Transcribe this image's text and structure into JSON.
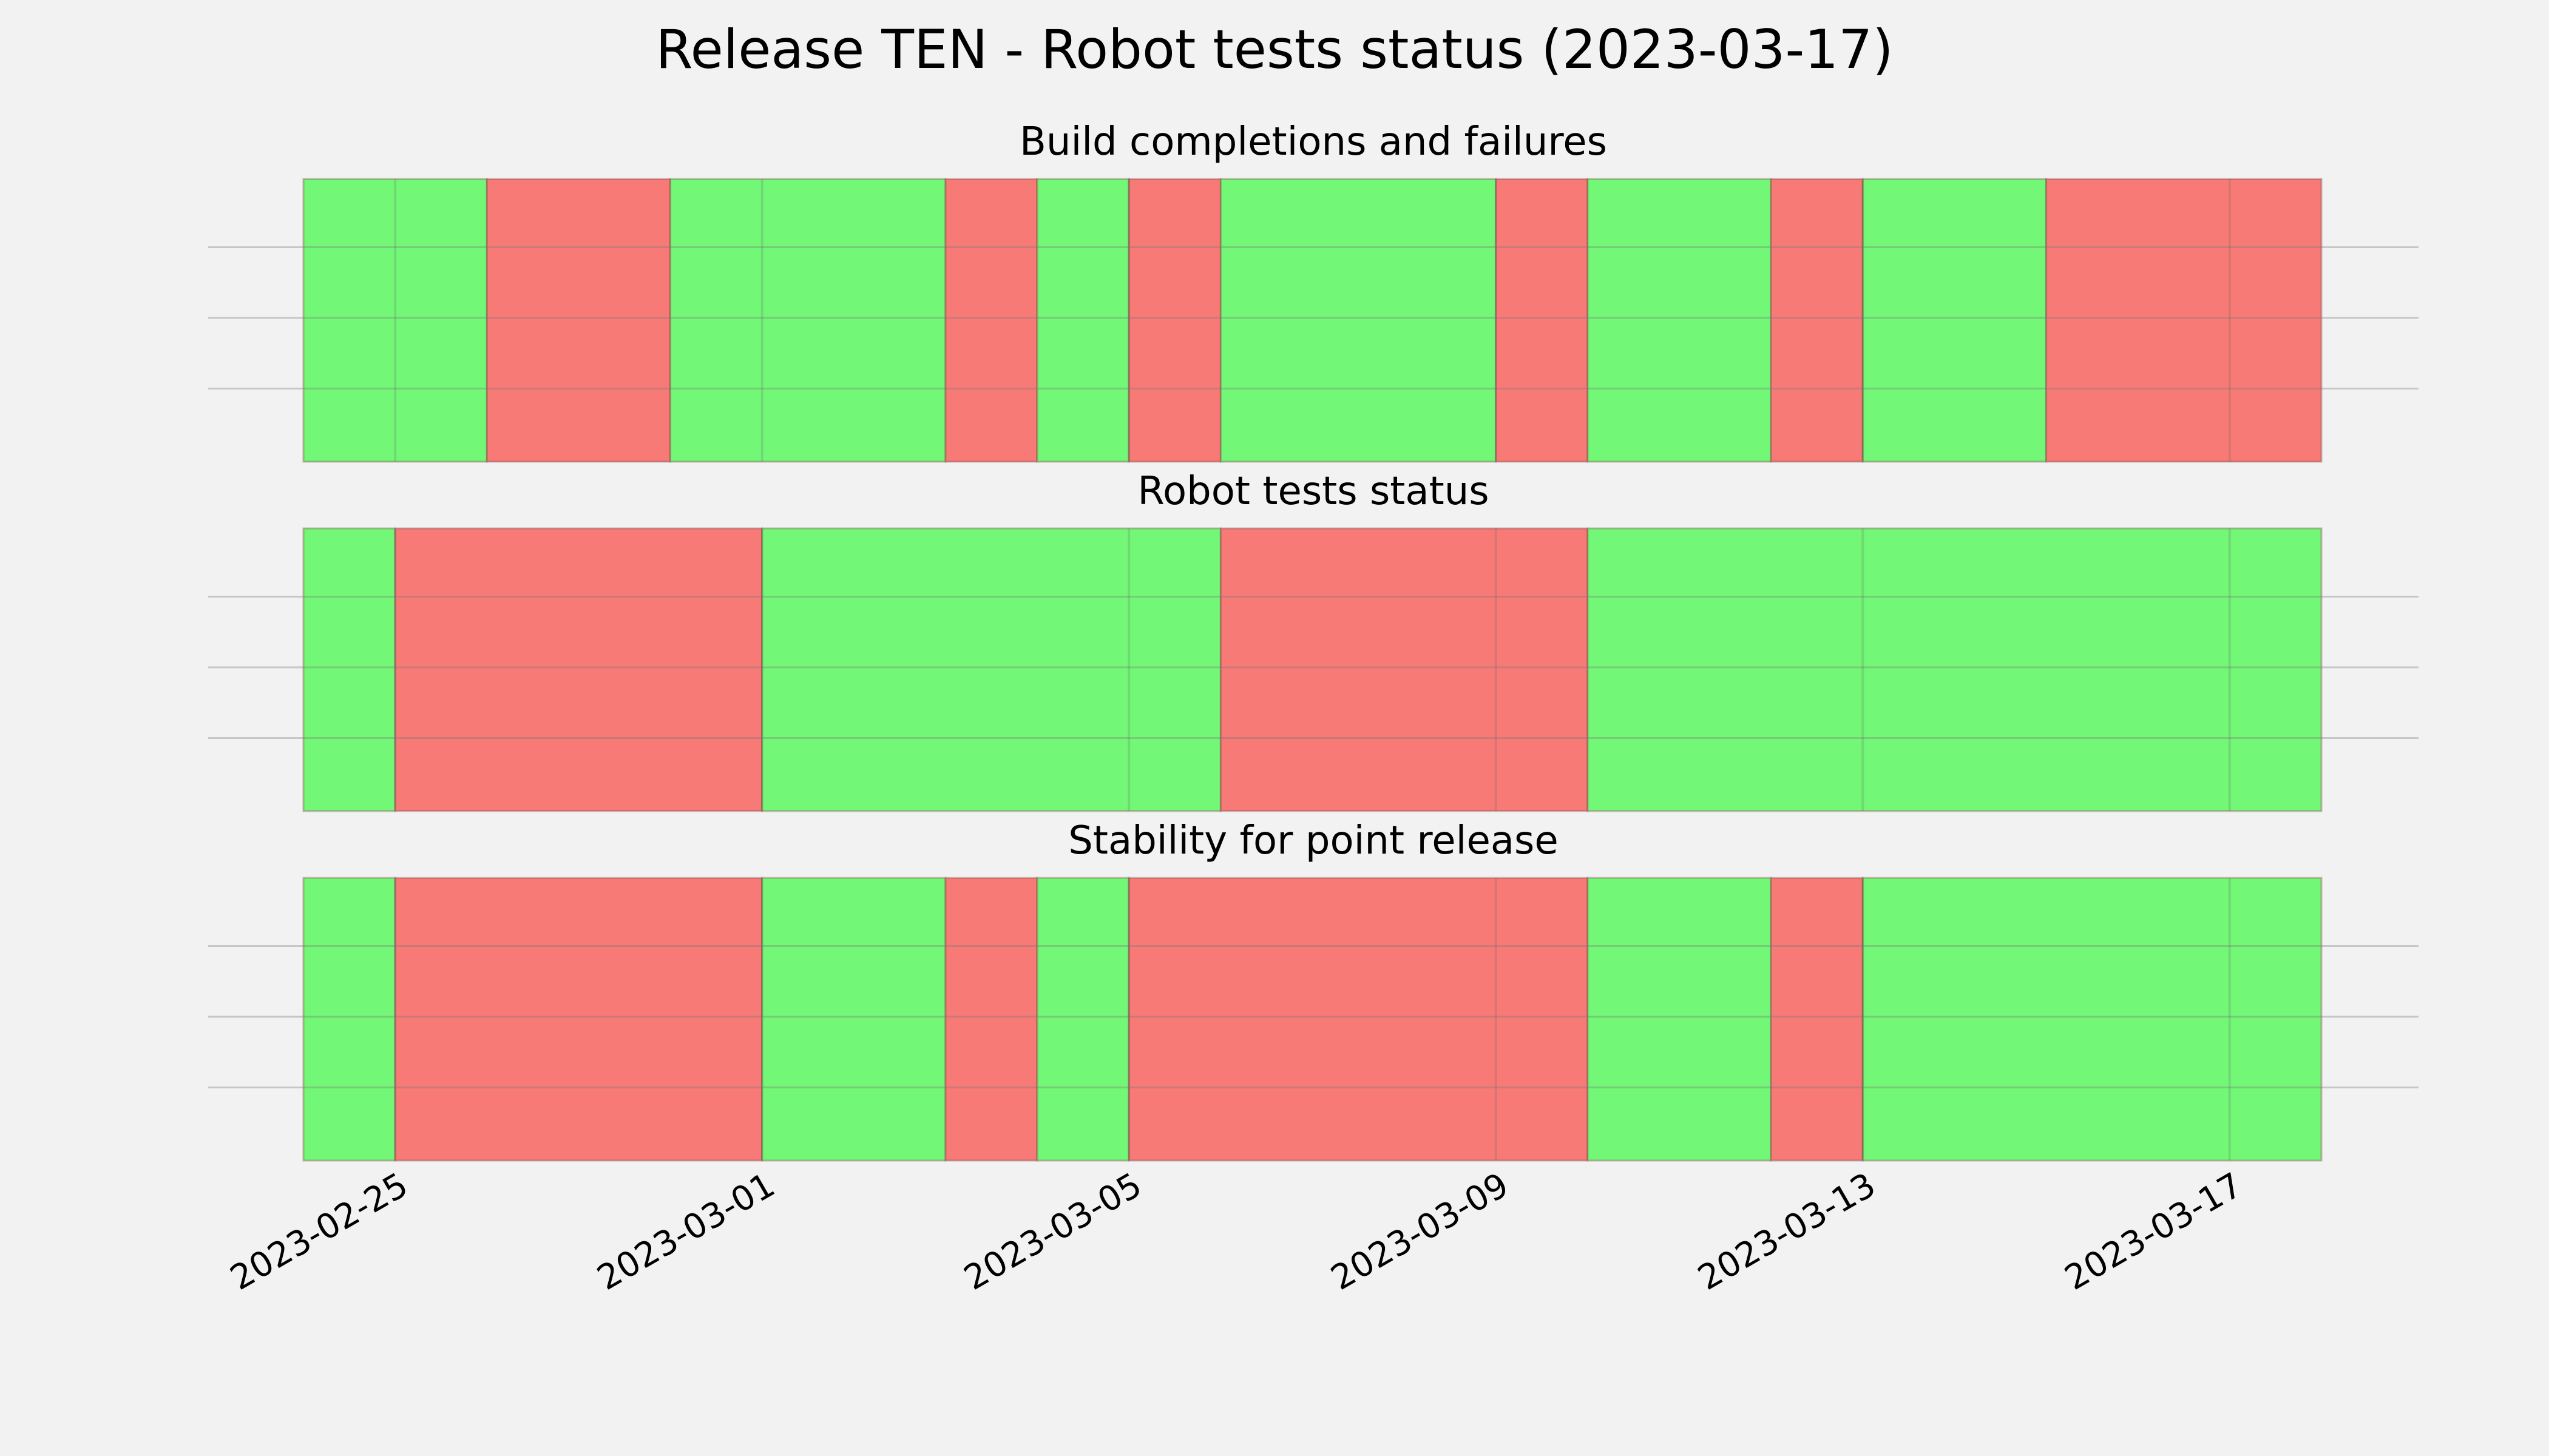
{
  "chart_data": {
    "type": "timeline",
    "title": "Release TEN - Robot tests status (2023-03-17)",
    "x_range": [
      "2023-02-24",
      "2023-03-18"
    ],
    "x_ticks": [
      "2023-02-25",
      "2023-03-01",
      "2023-03-05",
      "2023-03-09",
      "2023-03-13",
      "2023-03-17"
    ],
    "colors": {
      "pass": "#73f777",
      "fail": "#f77a77",
      "background": "#f2f2f2",
      "grid": "#c8c8c8"
    },
    "grid": true,
    "panels": [
      {
        "title": "Build completions and failures",
        "segments": [
          {
            "start": "2023-02-24",
            "end": "2023-02-26",
            "status": "pass"
          },
          {
            "start": "2023-02-26",
            "end": "2023-02-28",
            "status": "fail"
          },
          {
            "start": "2023-02-28",
            "end": "2023-03-03",
            "status": "pass"
          },
          {
            "start": "2023-03-03",
            "end": "2023-03-04",
            "status": "fail"
          },
          {
            "start": "2023-03-04",
            "end": "2023-03-05",
            "status": "pass"
          },
          {
            "start": "2023-03-05",
            "end": "2023-03-06",
            "status": "fail"
          },
          {
            "start": "2023-03-06",
            "end": "2023-03-09",
            "status": "pass"
          },
          {
            "start": "2023-03-09",
            "end": "2023-03-10",
            "status": "fail"
          },
          {
            "start": "2023-03-10",
            "end": "2023-03-12",
            "status": "pass"
          },
          {
            "start": "2023-03-12",
            "end": "2023-03-13",
            "status": "fail"
          },
          {
            "start": "2023-03-13",
            "end": "2023-03-15",
            "status": "pass"
          },
          {
            "start": "2023-03-15",
            "end": "2023-03-18",
            "status": "fail"
          }
        ]
      },
      {
        "title": "Robot tests status",
        "segments": [
          {
            "start": "2023-02-24",
            "end": "2023-02-25",
            "status": "pass"
          },
          {
            "start": "2023-02-25",
            "end": "2023-03-01",
            "status": "fail"
          },
          {
            "start": "2023-03-01",
            "end": "2023-03-06",
            "status": "pass"
          },
          {
            "start": "2023-03-06",
            "end": "2023-03-10",
            "status": "fail"
          },
          {
            "start": "2023-03-10",
            "end": "2023-03-18",
            "status": "pass"
          }
        ]
      },
      {
        "title": "Stability for point release",
        "segments": [
          {
            "start": "2023-02-24",
            "end": "2023-02-25",
            "status": "pass"
          },
          {
            "start": "2023-02-25",
            "end": "2023-03-01",
            "status": "fail"
          },
          {
            "start": "2023-03-01",
            "end": "2023-03-03",
            "status": "pass"
          },
          {
            "start": "2023-03-03",
            "end": "2023-03-04",
            "status": "fail"
          },
          {
            "start": "2023-03-04",
            "end": "2023-03-05",
            "status": "pass"
          },
          {
            "start": "2023-03-05",
            "end": "2023-03-10",
            "status": "fail"
          },
          {
            "start": "2023-03-10",
            "end": "2023-03-12",
            "status": "pass"
          },
          {
            "start": "2023-03-12",
            "end": "2023-03-13",
            "status": "fail"
          },
          {
            "start": "2023-03-13",
            "end": "2023-03-18",
            "status": "pass"
          }
        ]
      }
    ]
  }
}
